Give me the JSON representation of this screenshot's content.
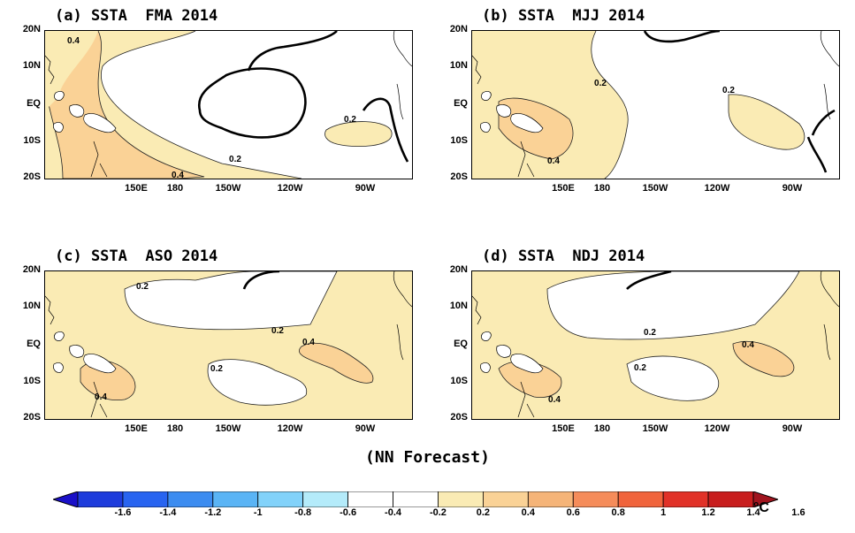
{
  "panels": [
    {
      "id": "a",
      "title": "(a) SSTA  FMA 2014",
      "labels": [
        "0.4",
        "0.2",
        "0.4",
        "0.2"
      ]
    },
    {
      "id": "b",
      "title": "(b) SSTA  MJJ 2014",
      "labels": [
        "0.2",
        "0.2",
        "0.4"
      ]
    },
    {
      "id": "c",
      "title": "(c) SSTA  ASO 2014",
      "labels": [
        "0.2",
        "0.2",
        "0.4",
        "0.2",
        "0.4"
      ]
    },
    {
      "id": "d",
      "title": "(d) SSTA  NDJ 2014",
      "labels": [
        "0.2",
        "0.4",
        "0.2",
        "0.4"
      ]
    }
  ],
  "lat_labels": [
    "20N",
    "10N",
    "EQ",
    "10S",
    "20S"
  ],
  "lon_labels": [
    "150E",
    "180",
    "150W",
    "120W",
    "90W"
  ],
  "caption": "(NN Forecast)",
  "colorbar": {
    "ticks": [
      "-1.6",
      "-1.4",
      "-1.2",
      "-1",
      "-0.8",
      "-0.6",
      "-0.4",
      "-0.2",
      "0.2",
      "0.4",
      "0.6",
      "0.8",
      "1",
      "1.2",
      "1.4",
      "1.6"
    ],
    "unit": "°C",
    "colors": [
      "#1a10c8",
      "#1e3cdc",
      "#2864f0",
      "#3c8cf0",
      "#5ab4f5",
      "#82d2fa",
      "#b4ebfa",
      "#ffffff",
      "#ffffff",
      "#faebb4",
      "#fad296",
      "#f5b478",
      "#f58c5a",
      "#f0643c",
      "#e13228",
      "#c81e1e",
      "#a0141e"
    ]
  },
  "colors": {
    "warm_0_2": "#faebb4",
    "warm_0_4": "#fad296"
  }
}
